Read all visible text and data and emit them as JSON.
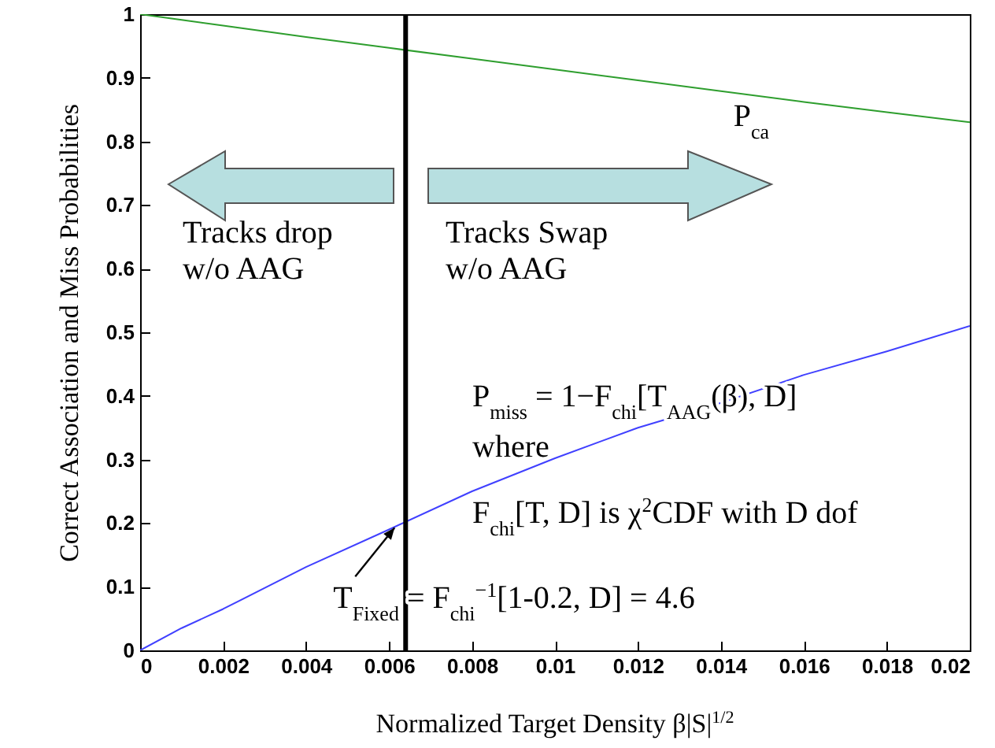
{
  "chart_data": {
    "type": "line",
    "xlabel": "Normalized Target Density    β|S|$^{1/2}$",
    "ylabel": "Correct Association and Miss Probabilities",
    "x": [
      0,
      0.001,
      0.002,
      0.004,
      0.006,
      0.008,
      0.01,
      0.012,
      0.014,
      0.016,
      0.018,
      0.02
    ],
    "series": [
      {
        "name": "P$_{ca}$",
        "color": "#2e9e2e",
        "values": [
          1,
          0.991,
          0.982,
          0.964,
          0.947,
          0.93,
          0.913,
          0.896,
          0.879,
          0.862,
          0.846,
          0.83
        ]
      },
      {
        "color": "#4040ff",
        "values": [
          0,
          0.035,
          0.065,
          0.131,
          0.19,
          0.25,
          0.302,
          0.35,
          0.389,
          0.433,
          0.47,
          0.51
        ]
      }
    ],
    "xlim": [
      0,
      0.02
    ],
    "xticks": [
      0,
      0.002,
      0.004,
      0.006,
      0.008,
      0.01,
      0.012,
      0.014,
      0.016,
      0.018,
      0.02
    ],
    "ylim": [
      0,
      1
    ],
    "yticks": [
      0,
      0.1,
      0.2,
      0.3,
      0.4,
      0.5,
      0.6,
      0.7,
      0.8,
      0.9,
      1
    ],
    "ref_lines": [
      {
        "axis": "x",
        "value": 0.0064,
        "color": "#000000"
      }
    ],
    "annotations": [
      "Tracks drop\nw/o AAG",
      "Tracks Swap\n w/o AAG",
      "P$_{miss}$ = 1−F$_{chi}$[T$_{AAG}$(β), D]",
      "where",
      "F$_{chi}$[T, D] is χ$^{2}$CDF with D dof",
      {
        "text": "T$_{Fixed}$ = F$_{chi}$$^{−1}$[1-0.2, D] = 4.6",
        "x": 0.0064,
        "y": 0.205
      }
    ],
    "grid": false,
    "legend": false,
    "marker": "none",
    "line_style": "solid"
  }
}
